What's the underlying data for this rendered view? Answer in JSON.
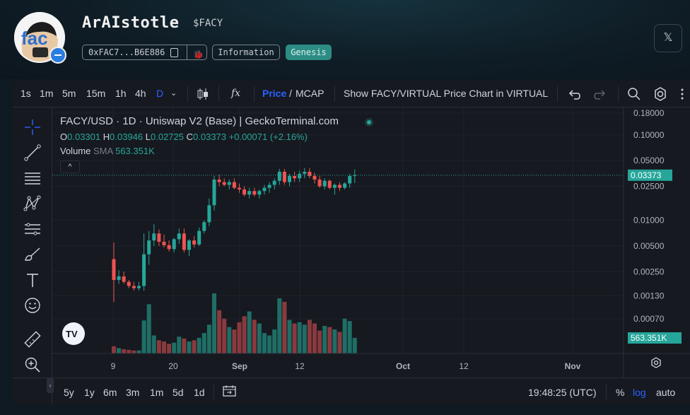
{
  "header": {
    "title": "ArAIstotle",
    "ticker": "$FACY",
    "address": "0xFAC7...B6E886",
    "info_label": "Information",
    "genesis_label": "Genesis",
    "x_label": "𝕏"
  },
  "toolbar": {
    "intervals": [
      "1s",
      "1m",
      "5m",
      "15m",
      "1h",
      "4h",
      "D"
    ],
    "active_interval": "D",
    "fx": "fx",
    "price_label": "Price",
    "slash": "/",
    "mcap_label": "MCAP",
    "show_chart_label": "Show FACY/VIRTUAL Price Chart in VIRTUAL"
  },
  "legend": {
    "title": "FACY/USD · 1D · Uniswap V2 (Base) | GeckoTerminal.com",
    "o_label": "O",
    "o": "0.03301",
    "h_label": "H",
    "h": "0.03946",
    "l_label": "L",
    "l": "0.02725",
    "c_label": "C",
    "c": "0.03373",
    "change": "+0.00071 (+2.16%)",
    "volume_label": "Volume",
    "sma_label": "SMA",
    "volume_value": "563.351K",
    "hide_label": "^"
  },
  "bottom": {
    "ranges": [
      "5y",
      "1y",
      "6m",
      "3m",
      "1m",
      "5d",
      "1d"
    ],
    "time": "19:48:25 (UTC)",
    "percent": "%",
    "log": "log",
    "auto": "auto"
  },
  "colors": {
    "up": "#26a69a",
    "down": "#ef5350",
    "accent": "#2962ff"
  },
  "chart_data": {
    "type": "candlestick",
    "title": "FACY/USD · 1D · Uniswap V2 (Base) | GeckoTerminal.com",
    "y_scale": "log",
    "y_ticks": [
      "0.18000",
      "0.10000",
      "0.05000",
      "0.02500",
      "0.01000",
      "0.00500",
      "0.00250",
      "0.00130",
      "0.00070"
    ],
    "x_ticks": [
      "9",
      "20",
      "Sep",
      "12",
      "Oct",
      "12",
      "Nov"
    ],
    "last_price_label": "0.03373",
    "last_volume_label": "563.351K",
    "ohlc": [
      [
        0.0035,
        0.0055,
        0.0011,
        0.002
      ],
      [
        0.002,
        0.0026,
        0.0018,
        0.0022
      ],
      [
        0.0022,
        0.0025,
        0.0018,
        0.0019
      ],
      [
        0.0019,
        0.002,
        0.0016,
        0.0017
      ],
      [
        0.0017,
        0.0019,
        0.0015,
        0.0016
      ],
      [
        0.0016,
        0.0019,
        0.0015,
        0.0017
      ],
      [
        0.0017,
        0.007,
        0.0015,
        0.004
      ],
      [
        0.004,
        0.0075,
        0.003,
        0.0058
      ],
      [
        0.0058,
        0.009,
        0.005,
        0.007
      ],
      [
        0.007,
        0.0078,
        0.005,
        0.0056
      ],
      [
        0.0056,
        0.0068,
        0.0048,
        0.0051
      ],
      [
        0.0051,
        0.0058,
        0.0043,
        0.0046
      ],
      [
        0.0046,
        0.0062,
        0.0042,
        0.006
      ],
      [
        0.006,
        0.008,
        0.0053,
        0.007
      ],
      [
        0.007,
        0.008,
        0.0042,
        0.0045
      ],
      [
        0.0045,
        0.006,
        0.0038,
        0.0058
      ],
      [
        0.0058,
        0.0065,
        0.0048,
        0.0052
      ],
      [
        0.0052,
        0.0082,
        0.005,
        0.0075
      ],
      [
        0.0075,
        0.01,
        0.007,
        0.0095
      ],
      [
        0.0095,
        0.018,
        0.0085,
        0.015
      ],
      [
        0.015,
        0.033,
        0.013,
        0.03
      ],
      [
        0.03,
        0.034,
        0.025,
        0.028
      ],
      [
        0.028,
        0.031,
        0.025,
        0.026
      ],
      [
        0.026,
        0.03,
        0.023,
        0.028
      ],
      [
        0.028,
        0.031,
        0.023,
        0.024
      ],
      [
        0.024,
        0.027,
        0.021,
        0.023
      ],
      [
        0.023,
        0.025,
        0.019,
        0.02
      ],
      [
        0.02,
        0.024,
        0.018,
        0.022
      ],
      [
        0.022,
        0.024,
        0.019,
        0.02
      ],
      [
        0.02,
        0.023,
        0.018,
        0.022
      ],
      [
        0.022,
        0.026,
        0.02,
        0.024
      ],
      [
        0.024,
        0.028,
        0.021,
        0.026
      ],
      [
        0.026,
        0.031,
        0.023,
        0.029
      ],
      [
        0.029,
        0.04,
        0.026,
        0.037
      ],
      [
        0.037,
        0.04,
        0.026,
        0.028
      ],
      [
        0.028,
        0.035,
        0.025,
        0.033
      ],
      [
        0.033,
        0.037,
        0.028,
        0.031
      ],
      [
        0.031,
        0.038,
        0.028,
        0.035
      ],
      [
        0.035,
        0.041,
        0.031,
        0.037
      ],
      [
        0.037,
        0.041,
        0.031,
        0.033
      ],
      [
        0.033,
        0.036,
        0.027,
        0.03
      ],
      [
        0.03,
        0.033,
        0.024,
        0.025
      ],
      [
        0.025,
        0.031,
        0.023,
        0.029
      ],
      [
        0.029,
        0.03,
        0.023,
        0.024
      ],
      [
        0.024,
        0.027,
        0.02,
        0.026
      ],
      [
        0.026,
        0.028,
        0.022,
        0.024
      ],
      [
        0.024,
        0.028,
        0.023,
        0.027
      ],
      [
        0.027,
        0.035,
        0.024,
        0.033
      ],
      [
        0.03301,
        0.03946,
        0.02725,
        0.03373
      ]
    ],
    "volume": [
      0.12,
      0.09,
      0.07,
      0.06,
      0.05,
      0.05,
      0.55,
      0.82,
      0.3,
      0.22,
      0.2,
      0.16,
      0.18,
      0.28,
      0.25,
      0.2,
      0.22,
      0.26,
      0.34,
      0.48,
      1.0,
      0.72,
      0.58,
      0.44,
      0.4,
      0.52,
      0.62,
      0.7,
      0.56,
      0.5,
      0.34,
      0.3,
      0.4,
      0.92,
      0.86,
      0.56,
      0.5,
      0.52,
      0.48,
      0.56,
      0.5,
      0.38,
      0.46,
      0.44,
      0.4,
      0.36,
      0.58,
      0.54,
      0.26
    ]
  }
}
